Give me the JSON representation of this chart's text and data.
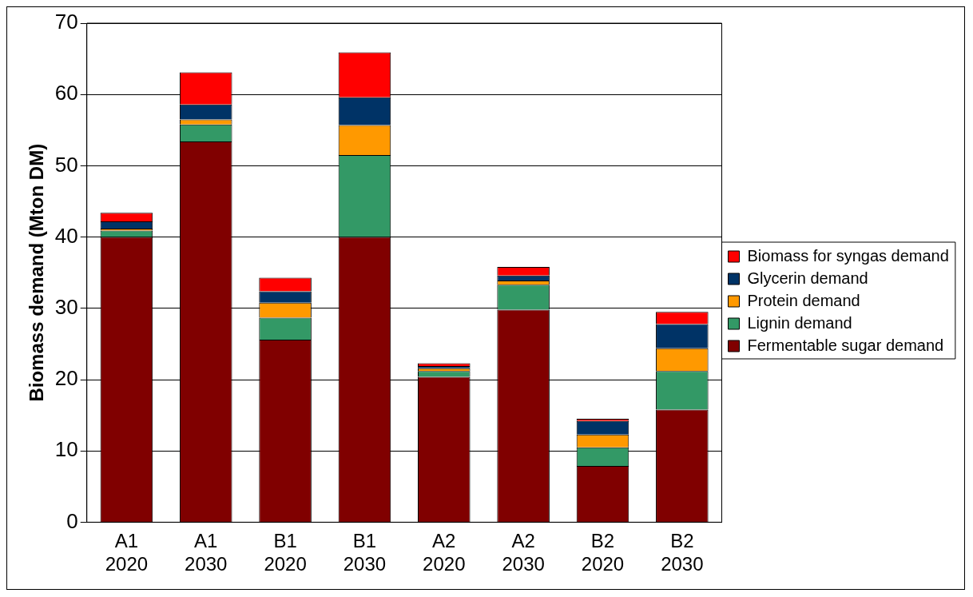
{
  "chart_data": {
    "type": "bar",
    "stacked": true,
    "ylabel": "Biomass demand (Mton DM)",
    "categories": [
      "A1 2020",
      "A1 2030",
      "B1 2020",
      "B1 2030",
      "A2 2020",
      "A2 2030",
      "B2 2020",
      "B2 2030"
    ],
    "series": [
      {
        "name": "Fermentable sugar demand",
        "color": "#800000",
        "values": [
          40.0,
          53.4,
          25.6,
          40.0,
          20.4,
          29.8,
          7.9,
          15.8
        ]
      },
      {
        "name": "Lignin demand",
        "color": "#339966",
        "values": [
          0.9,
          2.4,
          3.1,
          11.5,
          0.8,
          3.5,
          2.6,
          5.4
        ]
      },
      {
        "name": "Protein demand",
        "color": "#ff9900",
        "values": [
          0.3,
          0.7,
          2.1,
          4.2,
          0.4,
          0.6,
          1.8,
          3.2
        ]
      },
      {
        "name": "Glycerin demand",
        "color": "#003366",
        "values": [
          1.0,
          2.1,
          1.6,
          3.9,
          0.3,
          0.7,
          1.9,
          3.4
        ]
      },
      {
        "name": "Biomass for syngas demand",
        "color": "#ff0000",
        "values": [
          1.2,
          4.5,
          1.9,
          6.3,
          0.4,
          1.2,
          0.3,
          1.7
        ]
      }
    ],
    "ylim": [
      0,
      70
    ],
    "yticks": [
      0,
      10,
      20,
      30,
      40,
      50,
      60,
      70
    ],
    "grid": "y",
    "legend": "right"
  }
}
